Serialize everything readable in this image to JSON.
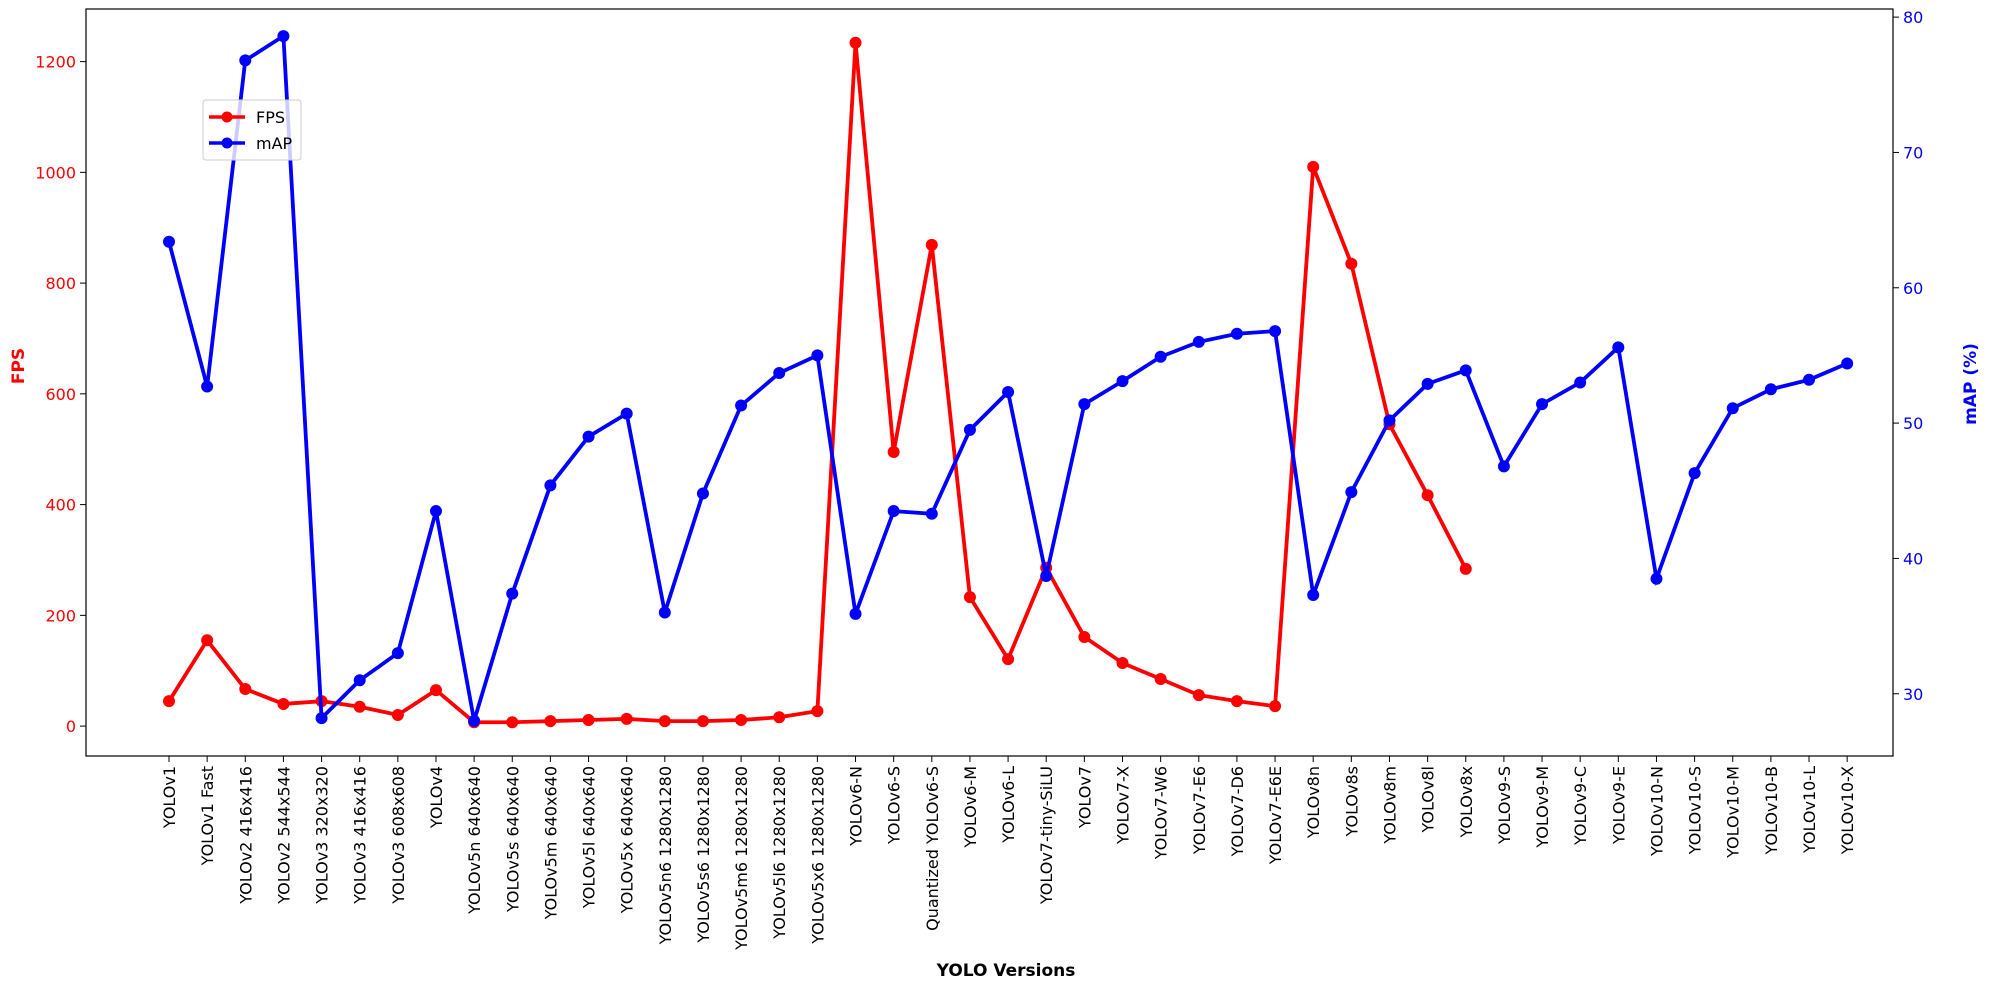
{
  "chart_data": {
    "type": "line",
    "title": "",
    "xlabel": "YOLO Versions",
    "ylabel_left": "FPS",
    "ylabel_right": "mAP (%)",
    "categories": [
      "YOLOv1",
      "YOLOv1 Fast",
      "YOLOv2 416x416",
      "YOLOv2 544x544",
      "YOLOv3 320x320",
      "YOLOv3 416x416",
      "YOLOv3 608x608",
      "YOLOv4",
      "YOLOv5n 640x640",
      "YOLOv5s 640x640",
      "YOLOv5m 640x640",
      "YOLOv5l 640x640",
      "YOLOv5x 640x640",
      "YOLOv5n6 1280x1280",
      "YOLOv5s6 1280x1280",
      "YOLOv5m6 1280x1280",
      "YOLOv5l6 1280x1280",
      "YOLOv5x6 1280x1280",
      "YOLOv6-N",
      "YOLOv6-S",
      "Quantized YOLOv6-S",
      "YOLOv6-M",
      "YOLOv6-L",
      "YOLOv7-tiny-SiLU",
      "YOLOv7",
      "YOLOv7-X",
      "YOLOv7-W6",
      "YOLOv7-E6",
      "YOLOv7-D6",
      "YOLOv7-E6E",
      "YOLOv8n",
      "YOLOv8s",
      "YOLOv8m",
      "YOLOv8l",
      "YOLOv8x",
      "YOLOv9-S",
      "YOLOv9-M",
      "YOLOv9-C",
      "YOLOv9-E",
      "YOLOv10-N",
      "YOLOv10-S",
      "YOLOv10-M",
      "YOLOv10-B",
      "YOLOv10-L",
      "YOLOv10-X"
    ],
    "series": [
      {
        "name": "FPS",
        "axis": "left",
        "color": "#ff0000",
        "values": [
          45,
          155,
          67,
          40,
          45,
          35,
          20,
          65,
          7,
          7,
          9,
          11,
          13,
          9,
          9,
          11,
          16,
          27,
          1234,
          495,
          869,
          233,
          121,
          286,
          161,
          114,
          85,
          56,
          45,
          36,
          1010,
          835,
          545,
          417,
          284,
          null,
          null,
          null,
          null,
          null,
          null,
          null,
          null,
          null,
          null
        ]
      },
      {
        "name": "mAP",
        "axis": "right",
        "color": "#0000ff",
        "values": [
          63.4,
          52.7,
          76.8,
          78.6,
          28.2,
          31.0,
          33.0,
          43.5,
          28.0,
          37.4,
          45.4,
          49.0,
          50.7,
          36.0,
          44.8,
          51.3,
          53.7,
          55.0,
          35.9,
          43.5,
          43.3,
          49.5,
          52.3,
          38.7,
          51.4,
          53.1,
          54.9,
          56.0,
          56.6,
          56.8,
          37.3,
          44.9,
          50.2,
          52.9,
          53.9,
          46.8,
          51.4,
          53.0,
          55.6,
          38.5,
          46.3,
          51.1,
          52.5,
          53.2,
          54.4
        ]
      }
    ],
    "ylim_left": [
      -54,
      1295
    ],
    "ylim_right": [
      25.4,
      80.6
    ],
    "yticks_left": [
      0,
      200,
      400,
      600,
      800,
      1000,
      1200
    ],
    "yticks_right": [
      30,
      40,
      50,
      60,
      70,
      80
    ],
    "grid": false,
    "legend": {
      "placement": "upper-left",
      "entries": [
        "FPS",
        "mAP"
      ]
    },
    "colors": {
      "left_axis": "#ff0000",
      "right_axis": "#0000ff"
    }
  }
}
